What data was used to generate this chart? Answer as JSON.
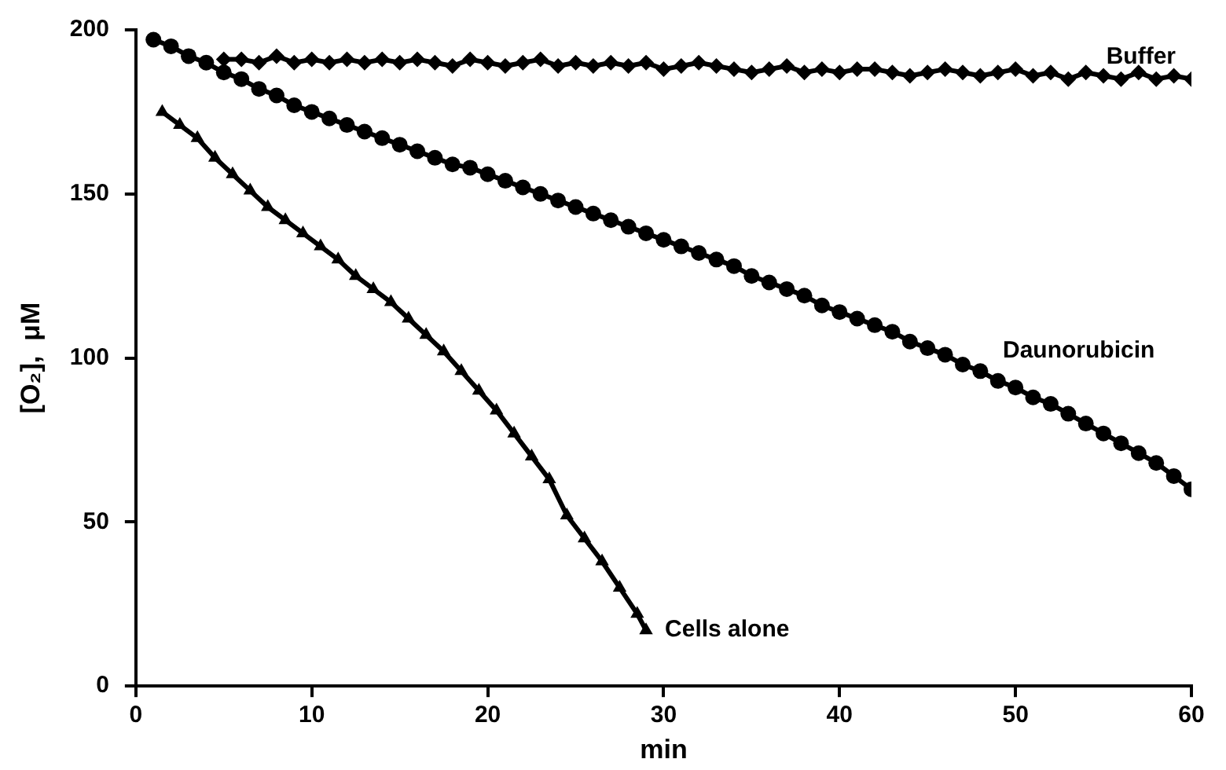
{
  "chart_data": {
    "type": "line",
    "xlabel": "min",
    "ylabel": "[O₂],  μM",
    "xlim": [
      0,
      60
    ],
    "xticks": [
      0,
      10,
      20,
      30,
      40,
      50,
      60
    ],
    "ylim": [
      0,
      200
    ],
    "yticks": [
      0,
      50,
      100,
      150,
      200
    ],
    "grid": false,
    "legend": false,
    "line_style": "solid",
    "series": [
      {
        "name": "Buffer",
        "color": "#000000",
        "marker": "diamond",
        "x": [
          5,
          6,
          7,
          8,
          9,
          10,
          11,
          12,
          13,
          14,
          15,
          16,
          17,
          18,
          19,
          20,
          21,
          22,
          23,
          24,
          25,
          26,
          27,
          28,
          29,
          30,
          31,
          32,
          33,
          34,
          35,
          36,
          37,
          38,
          39,
          40,
          41,
          42,
          43,
          44,
          45,
          46,
          47,
          48,
          49,
          50,
          51,
          52,
          53,
          54,
          55,
          56,
          57,
          58,
          59,
          60
        ],
        "values": [
          191,
          191,
          190,
          192,
          190,
          191,
          190,
          191,
          190,
          191,
          190,
          191,
          190,
          189,
          191,
          190,
          189,
          190,
          191,
          189,
          190,
          189,
          190,
          189,
          190,
          188,
          189,
          190,
          189,
          188,
          187,
          188,
          189,
          187,
          188,
          187,
          188,
          188,
          187,
          186,
          187,
          188,
          187,
          186,
          187,
          188,
          186,
          187,
          185,
          187,
          186,
          185,
          187,
          185,
          186,
          185
        ]
      },
      {
        "name": "Daunorubicin",
        "color": "#000000",
        "marker": "circle",
        "x": [
          1,
          2,
          3,
          4,
          5,
          6,
          7,
          8,
          9,
          10,
          11,
          12,
          13,
          14,
          15,
          16,
          17,
          18,
          19,
          20,
          21,
          22,
          23,
          24,
          25,
          26,
          27,
          28,
          29,
          30,
          31,
          32,
          33,
          34,
          35,
          36,
          37,
          38,
          39,
          40,
          41,
          42,
          43,
          44,
          45,
          46,
          47,
          48,
          49,
          50,
          51,
          52,
          53,
          54,
          55,
          56,
          57,
          58,
          59,
          60
        ],
        "values": [
          197,
          195,
          192,
          190,
          187,
          185,
          182,
          180,
          177,
          175,
          173,
          171,
          169,
          167,
          165,
          163,
          161,
          159,
          158,
          156,
          154,
          152,
          150,
          148,
          146,
          144,
          142,
          140,
          138,
          136,
          134,
          132,
          130,
          128,
          125,
          123,
          121,
          119,
          116,
          114,
          112,
          110,
          108,
          105,
          103,
          101,
          98,
          96,
          93,
          91,
          88,
          86,
          83,
          80,
          77,
          74,
          71,
          68,
          64,
          60
        ]
      },
      {
        "name": "Cells alone",
        "color": "#000000",
        "marker": "triangle",
        "x": [
          1.5,
          2.5,
          3.5,
          4.5,
          5.5,
          6.5,
          7.5,
          8.5,
          9.5,
          10.5,
          11.5,
          12.5,
          13.5,
          14.5,
          15.5,
          16.5,
          17.5,
          18.5,
          19.5,
          20.5,
          21.5,
          22.5,
          23.5,
          24.5,
          25.5,
          26.5,
          27.5,
          28.5,
          29
        ],
        "values": [
          175,
          171,
          167,
          161,
          156,
          151,
          146,
          142,
          138,
          134,
          130,
          125,
          121,
          117,
          112,
          107,
          102,
          96,
          90,
          84,
          77,
          70,
          63,
          52,
          45,
          38,
          30,
          22,
          17
        ]
      }
    ]
  }
}
